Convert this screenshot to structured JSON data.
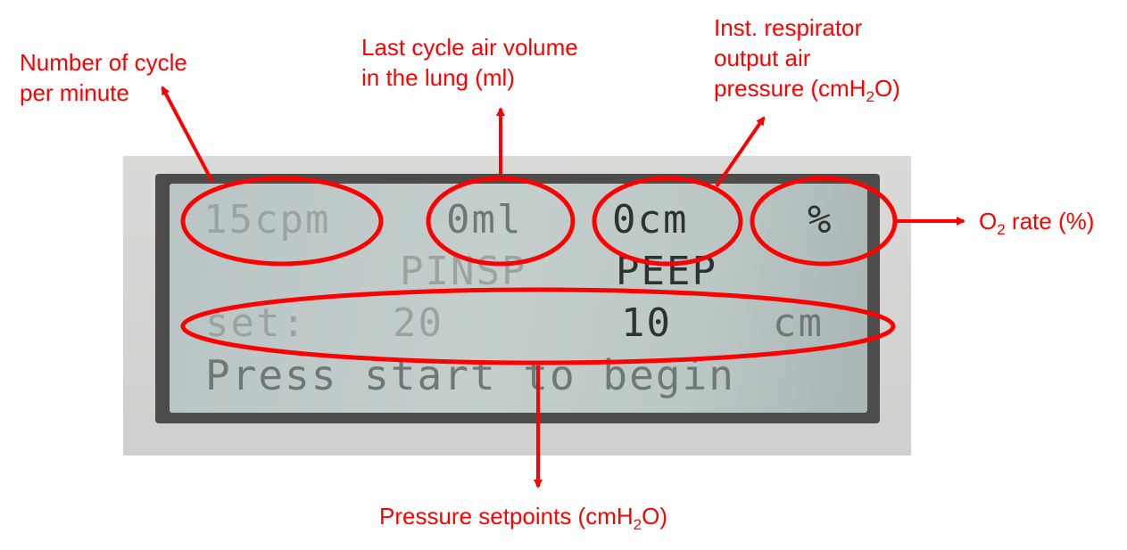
{
  "annotations": {
    "cycles": {
      "lines": [
        "Number of cycle",
        "per minute"
      ]
    },
    "volume": {
      "lines": [
        "Last cycle air volume",
        "in the lung (ml)"
      ]
    },
    "pressure": {
      "line1": "Inst. respirator",
      "line2": "output air",
      "line3_prefix": "pressure (cmH",
      "line3_sub": "2",
      "line3_suffix": "O)"
    },
    "o2": {
      "prefix": "O",
      "sub": "2",
      "suffix": " rate (%)"
    },
    "setpoints": {
      "prefix": "Pressure setpoints (cmH",
      "sub": "2",
      "suffix": "O)"
    }
  },
  "display": {
    "row1": {
      "cycles": "15cpm",
      "volume": "0ml",
      "pressure": "0cm",
      "o2": "%"
    },
    "row2": {
      "pinsp": "PINSP",
      "peep": "PEEP"
    },
    "row3": {
      "label": "set:",
      "pinsp_value": "20",
      "peep_value": "10",
      "unit": "cm"
    },
    "row4": {
      "message": "Press start to begin"
    }
  },
  "colors": {
    "annotation": "#ff0000",
    "lcd_bg": "#bcc8c6",
    "lcd_text": "#2c3433"
  }
}
